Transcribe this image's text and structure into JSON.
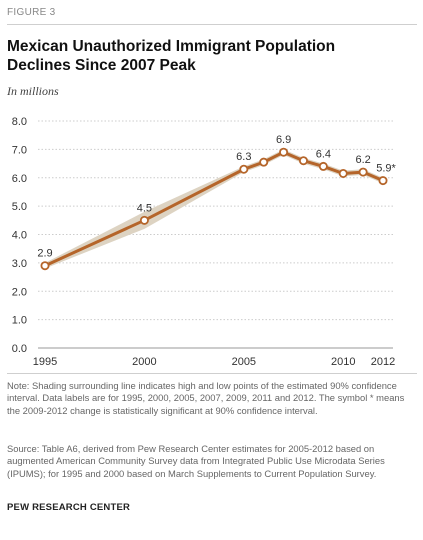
{
  "figure_label": "FIGURE 3",
  "title_line1": "Mexican Unauthorized Immigrant Population",
  "title_line2": "Declines Since 2007 Peak",
  "subtitle": "In millions",
  "note": "Note: Shading surrounding line indicates high and low points of the estimated 90% confidence interval. Data labels are for 1995, 2000, 2005, 2007, 2009, 2011 and 2012. The symbol * means the 2009-2012 change is statistically significant at 90% confidence interval.",
  "source": "Source: Table A6, derived from Pew Research Center estimates for 2005-2012 based on augmented American Community Survey data from Integrated Public Use Microdata Series (IPUMS); for 1995 and 2000 based on March Supplements to Current Population Survey.",
  "credit": "PEW RESEARCH CENTER",
  "colors": {
    "line": "#b5652a",
    "band": "#ddd3c2",
    "grid": "#cccccc",
    "marker_fill": "#ffffff"
  },
  "chart_data": {
    "type": "line",
    "ylim": [
      0,
      8
    ],
    "yticks": [
      "0.0",
      "1.0",
      "2.0",
      "3.0",
      "4.0",
      "5.0",
      "6.0",
      "7.0",
      "8.0"
    ],
    "xlim": [
      1995,
      2012
    ],
    "xticks": [
      "1995",
      "2000",
      "2005",
      "2010",
      "2012"
    ],
    "series": [
      {
        "x": [
          1995,
          2000,
          2005,
          2006,
          2007,
          2008,
          2009,
          2010,
          2011,
          2012
        ],
        "y": [
          2.9,
          4.5,
          6.3,
          6.55,
          6.9,
          6.6,
          6.4,
          6.15,
          6.2,
          5.9
        ],
        "low": [
          2.8,
          4.2,
          6.2,
          6.45,
          6.8,
          6.5,
          6.3,
          6.05,
          6.1,
          5.8
        ],
        "high": [
          3.0,
          4.8,
          6.4,
          6.65,
          7.0,
          6.7,
          6.5,
          6.25,
          6.3,
          6.0
        ]
      }
    ],
    "data_labels": [
      {
        "x": 1995,
        "y": 2.9,
        "text": "2.9"
      },
      {
        "x": 2000,
        "y": 4.5,
        "text": "4.5"
      },
      {
        "x": 2005,
        "y": 6.3,
        "text": "6.3"
      },
      {
        "x": 2007,
        "y": 6.9,
        "text": "6.9"
      },
      {
        "x": 2009,
        "y": 6.4,
        "text": "6.4"
      },
      {
        "x": 2011,
        "y": 6.2,
        "text": "6.2"
      },
      {
        "x": 2012,
        "y": 5.9,
        "text": "5.9*"
      }
    ]
  }
}
